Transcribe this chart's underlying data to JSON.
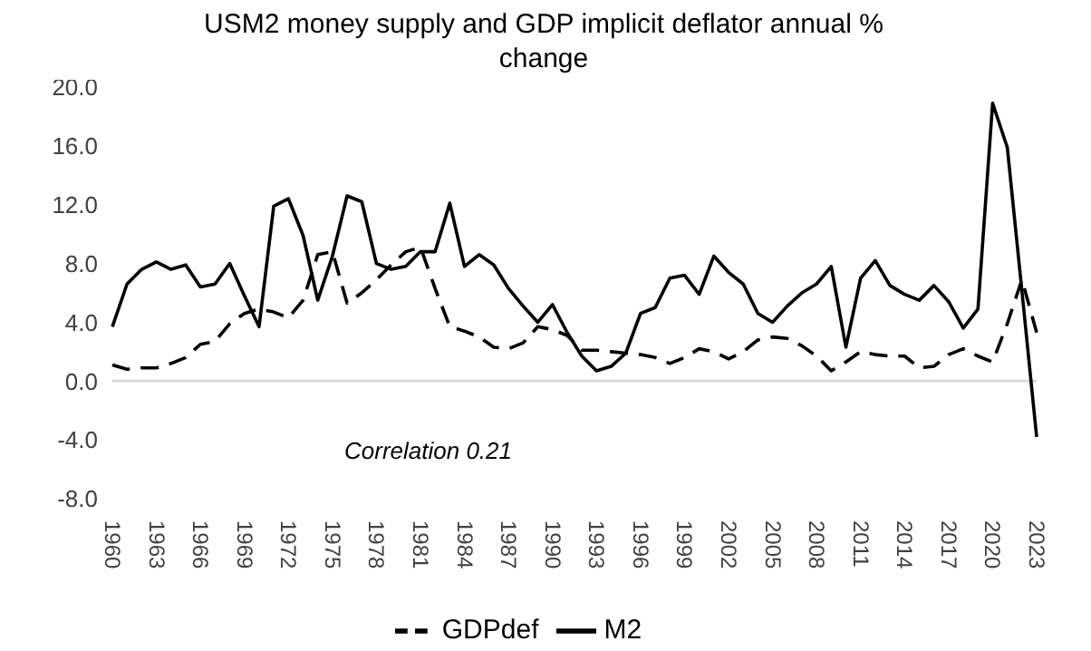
{
  "chart_data": {
    "type": "line",
    "title": "USM2 money supply and GDP implicit deflator annual % change",
    "categories": [
      "1960",
      null,
      null,
      "1963",
      null,
      null,
      "1966",
      null,
      null,
      "1969",
      null,
      null,
      "1972",
      null,
      null,
      "1975",
      null,
      null,
      "1978",
      null,
      null,
      "1981",
      null,
      null,
      "1984",
      null,
      null,
      "1987",
      null,
      null,
      "1990",
      null,
      null,
      "1993",
      null,
      null,
      "1996",
      null,
      null,
      "1999",
      null,
      null,
      "2002",
      null,
      null,
      "2005",
      null,
      null,
      "2008",
      null,
      null,
      "2011",
      null,
      null,
      "2014",
      null,
      null,
      "2017",
      null,
      null,
      "2020",
      null,
      null,
      "2023"
    ],
    "series": [
      {
        "name": "M2",
        "color": "#000000",
        "line_style": "solid",
        "values": [
          3.7,
          6.6,
          7.6,
          8.1,
          7.6,
          7.9,
          6.4,
          6.6,
          8.0,
          5.8,
          3.7,
          11.9,
          12.4,
          9.9,
          5.5,
          8.5,
          12.6,
          12.2,
          8.0,
          7.6,
          7.8,
          8.8,
          8.8,
          12.1,
          7.8,
          8.6,
          7.9,
          6.3,
          5.1,
          4.0,
          5.2,
          3.3,
          1.7,
          0.7,
          1.0,
          1.9,
          4.6,
          5.0,
          7.0,
          7.2,
          5.9,
          8.5,
          7.4,
          6.6,
          4.6,
          4.0,
          5.1,
          6.0,
          6.6,
          7.8,
          2.3,
          7.0,
          8.2,
          6.5,
          5.9,
          5.5,
          6.5,
          5.4,
          3.6,
          4.9,
          18.9,
          15.9,
          6.1,
          -3.8
        ]
      },
      {
        "name": "GDPdef",
        "color": "#000000",
        "line_style": "dashed",
        "values": [
          1.1,
          0.8,
          0.9,
          0.9,
          1.2,
          1.6,
          2.5,
          2.7,
          3.9,
          4.6,
          4.9,
          4.7,
          4.3,
          5.5,
          8.6,
          8.8,
          5.3,
          6.0,
          6.9,
          7.9,
          8.8,
          9.1,
          6.3,
          3.7,
          3.4,
          3.0,
          2.3,
          2.2,
          2.6,
          3.7,
          3.5,
          3.1,
          2.1,
          2.1,
          2.0,
          1.9,
          1.8,
          1.6,
          1.2,
          1.6,
          2.2,
          2.0,
          1.5,
          2.0,
          2.8,
          3.0,
          2.9,
          2.4,
          1.7,
          0.7,
          1.3,
          2.0,
          1.8,
          1.7,
          1.7,
          0.9,
          1.0,
          1.8,
          2.2,
          1.7,
          1.3,
          3.9,
          6.9,
          3.3
        ]
      }
    ],
    "ylim": [
      -8,
      20
    ],
    "yticks": [
      {
        "value": -8,
        "label": "-8.0"
      },
      {
        "value": -4,
        "label": "-4.0"
      },
      {
        "value": 0,
        "label": "0.0"
      },
      {
        "value": 4,
        "label": "4.0"
      },
      {
        "value": 8,
        "label": "8.0"
      },
      {
        "value": 12,
        "label": "12.0"
      },
      {
        "value": 16,
        "label": "16.0"
      },
      {
        "value": 20,
        "label": "20.0"
      }
    ],
    "ref_lines": [
      {
        "axis": "y",
        "value": 0,
        "color": "#d9d9d9"
      }
    ],
    "annotations": [
      "Correlation 0.21"
    ],
    "grid": false,
    "legend": "bottom",
    "marker": "none"
  }
}
